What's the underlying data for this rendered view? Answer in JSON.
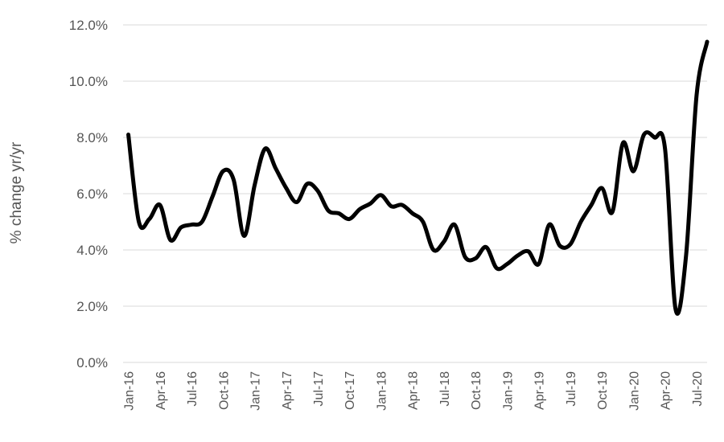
{
  "chart_data": {
    "type": "line",
    "ylabel": "% change yr/yr",
    "ylim": [
      0,
      12
    ],
    "y_ticks": [
      "0.0%",
      "2.0%",
      "4.0%",
      "6.0%",
      "8.0%",
      "10.0%",
      "12.0%"
    ],
    "y_tick_values": [
      0,
      2,
      4,
      6,
      8,
      10,
      12
    ],
    "grid": "horizontal",
    "legend": "none",
    "x_tick_labels": [
      "Jan-16",
      "Apr-16",
      "Jul-16",
      "Oct-16",
      "Jan-17",
      "Apr-17",
      "Jul-17",
      "Oct-17",
      "Jan-18",
      "Apr-18",
      "Jul-18",
      "Oct-18",
      "Jan-19",
      "Apr-19",
      "Jul-19",
      "Oct-19",
      "Jan-20",
      "Apr-20",
      "Jul-20"
    ],
    "x": [
      "Jan-16",
      "Feb-16",
      "Mar-16",
      "Apr-16",
      "May-16",
      "Jun-16",
      "Jul-16",
      "Aug-16",
      "Sep-16",
      "Oct-16",
      "Nov-16",
      "Dec-16",
      "Jan-17",
      "Feb-17",
      "Mar-17",
      "Apr-17",
      "May-17",
      "Jun-17",
      "Jul-17",
      "Aug-17",
      "Sep-17",
      "Oct-17",
      "Nov-17",
      "Dec-17",
      "Jan-18",
      "Feb-18",
      "Mar-18",
      "Apr-18",
      "May-18",
      "Jun-18",
      "Jul-18",
      "Aug-18",
      "Sep-18",
      "Oct-18",
      "Nov-18",
      "Dec-18",
      "Jan-19",
      "Feb-19",
      "Mar-19",
      "Apr-19",
      "May-19",
      "Jun-19",
      "Jul-19",
      "Aug-19",
      "Sep-19",
      "Oct-19",
      "Nov-19",
      "Dec-19",
      "Jan-20",
      "Feb-20",
      "Mar-20",
      "Apr-20",
      "May-20",
      "Jun-20",
      "Jul-20",
      "Aug-20"
    ],
    "series": [
      {
        "values": [
          8.1,
          5.0,
          5.1,
          5.6,
          4.35,
          4.8,
          4.9,
          5.0,
          5.9,
          6.8,
          6.5,
          4.5,
          6.3,
          7.6,
          6.9,
          6.2,
          5.7,
          6.35,
          6.1,
          5.4,
          5.3,
          5.1,
          5.45,
          5.65,
          5.95,
          5.55,
          5.6,
          5.3,
          5.0,
          4.0,
          4.3,
          4.9,
          3.75,
          3.7,
          4.1,
          3.35,
          3.5,
          3.8,
          3.95,
          3.5,
          4.9,
          4.15,
          4.2,
          5.0,
          5.6,
          6.2,
          5.35,
          7.8,
          6.8,
          8.1,
          8.0,
          7.6,
          1.9,
          3.8,
          9.5,
          11.4
        ]
      }
    ],
    "colors": {
      "line": "#000000",
      "grid": "#d9d9d9",
      "text": "#555555"
    }
  }
}
